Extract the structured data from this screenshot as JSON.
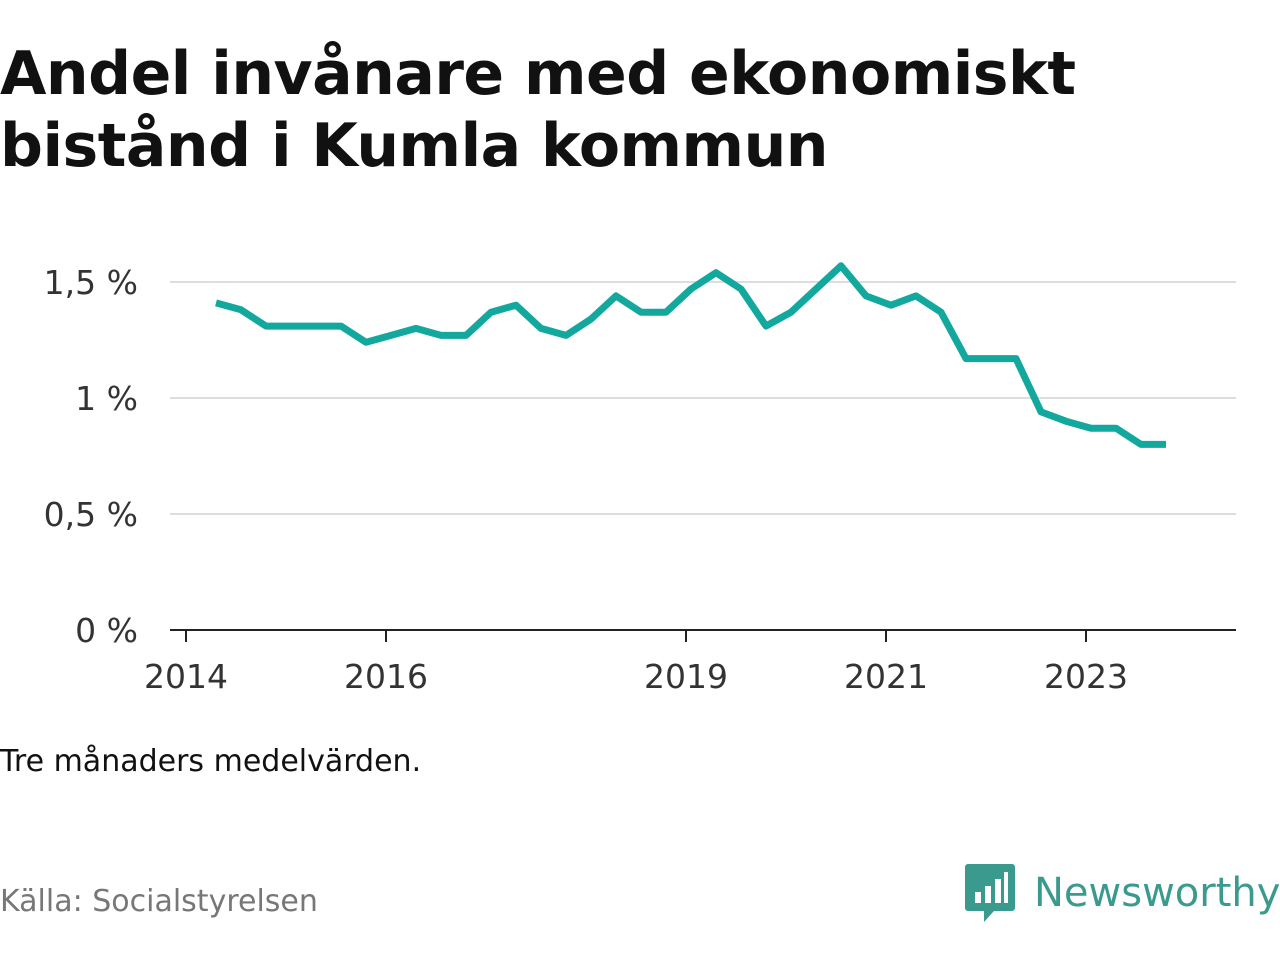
{
  "title": "Andel invånare med ekonomiskt bistånd i Kumla kommun",
  "note": "Tre månaders medelvärden.",
  "source": "Källa: Socialstyrelsen",
  "brand": {
    "name": "Newsworthy",
    "icon": "newsworthy-logo-icon",
    "color": "#3a9a8e"
  },
  "chart_data": {
    "type": "line",
    "title": "Andel invånare med ekonomiskt bistånd i Kumla kommun",
    "xlabel": "",
    "ylabel": "",
    "ylim": [
      0,
      1.5
    ],
    "yticks": [
      {
        "value": 0,
        "label": "0 %"
      },
      {
        "value": 0.5,
        "label": "0,5 %"
      },
      {
        "value": 1,
        "label": "1 %"
      },
      {
        "value": 1.5,
        "label": "1,5 %"
      }
    ],
    "xticks": [
      {
        "value": 2014.0,
        "label": "2014"
      },
      {
        "value": 2016.0,
        "label": "2016"
      },
      {
        "value": 2019.0,
        "label": "2019"
      },
      {
        "value": 2021.0,
        "label": "2021"
      },
      {
        "value": 2023.0,
        "label": "2023"
      }
    ],
    "xlim": [
      2014.0,
      2024.5
    ],
    "grid": true,
    "color": "#13a89e",
    "series": [
      {
        "values": [
          [
            2014.3,
            1.41
          ],
          [
            2014.55,
            1.38
          ],
          [
            2014.8,
            1.31
          ],
          [
            2015.05,
            1.31
          ],
          [
            2015.3,
            1.31
          ],
          [
            2015.55,
            1.31
          ],
          [
            2015.8,
            1.24
          ],
          [
            2016.05,
            1.27
          ],
          [
            2016.3,
            1.3
          ],
          [
            2016.55,
            1.27
          ],
          [
            2016.8,
            1.27
          ],
          [
            2017.05,
            1.37
          ],
          [
            2017.3,
            1.4
          ],
          [
            2017.55,
            1.3
          ],
          [
            2017.8,
            1.27
          ],
          [
            2018.05,
            1.34
          ],
          [
            2018.3,
            1.44
          ],
          [
            2018.55,
            1.37
          ],
          [
            2018.8,
            1.37
          ],
          [
            2019.05,
            1.47
          ],
          [
            2019.3,
            1.54
          ],
          [
            2019.55,
            1.47
          ],
          [
            2019.8,
            1.31
          ],
          [
            2020.05,
            1.37
          ],
          [
            2020.3,
            1.47
          ],
          [
            2020.55,
            1.57
          ],
          [
            2020.8,
            1.44
          ],
          [
            2021.05,
            1.4
          ],
          [
            2021.3,
            1.44
          ],
          [
            2021.55,
            1.37
          ],
          [
            2021.8,
            1.17
          ],
          [
            2022.05,
            1.17
          ],
          [
            2022.3,
            1.17
          ],
          [
            2022.55,
            0.94
          ],
          [
            2022.8,
            0.9
          ],
          [
            2023.05,
            0.87
          ],
          [
            2023.3,
            0.87
          ],
          [
            2023.55,
            0.8
          ],
          [
            2023.8,
            0.8
          ]
        ]
      }
    ]
  }
}
